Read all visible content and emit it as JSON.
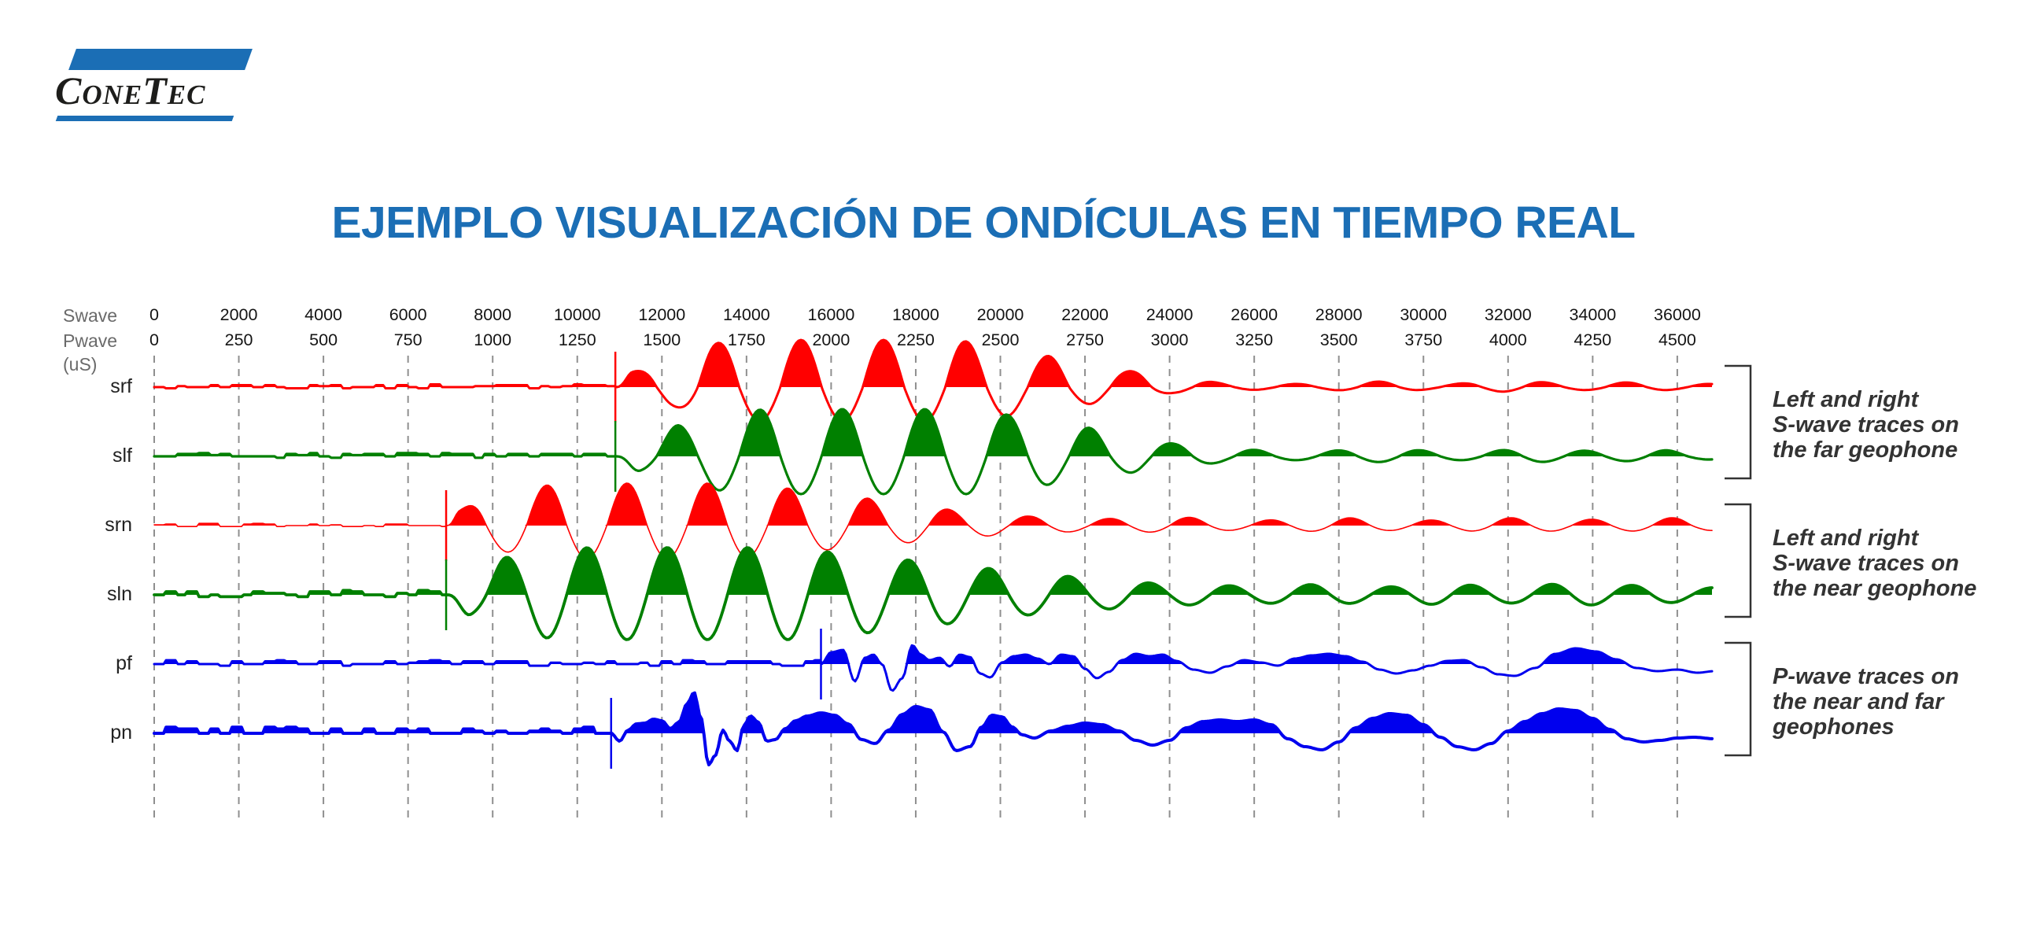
{
  "brand": {
    "name": "ConeTec",
    "bar_color": "#1b6eb5",
    "text_color": "#1d1d1b"
  },
  "title": {
    "text": "EJEMPLO VISUALIZACIÓN DE ONDÍCULAS EN TIEMPO REAL",
    "color": "#1b6eb5"
  },
  "chart_data": {
    "type": "line",
    "subtype": "seismic-wiggle-traces",
    "title": "EJEMPLO VISUALIZACIÓN DE ONDÍCULAS EN TIEMPO REAL",
    "grid": {
      "style": "dashed-vertical",
      "color": "#8f8f8f"
    },
    "unit_label": "(uS)",
    "x_axes": [
      {
        "id": "swave",
        "label": "Swave",
        "unit": "uS",
        "min": 0,
        "max": 36000,
        "tick_step": 2000,
        "ticks": [
          0,
          2000,
          4000,
          6000,
          8000,
          10000,
          12000,
          14000,
          16000,
          18000,
          20000,
          22000,
          24000,
          26000,
          28000,
          30000,
          32000,
          34000,
          36000
        ]
      },
      {
        "id": "pwave",
        "label": "Pwave",
        "unit": "uS",
        "min": 0,
        "max": 4500,
        "tick_step": 250,
        "ticks": [
          0,
          250,
          500,
          750,
          1000,
          1250,
          1500,
          1750,
          2000,
          2250,
          2500,
          2750,
          3000,
          3250,
          3500,
          3750,
          4000,
          4250,
          4500
        ]
      }
    ],
    "traces": [
      {
        "id": "srf",
        "label": "srf",
        "color": "#ff0000",
        "axis": "swave",
        "kind": "wavelet",
        "onset_us": 10900,
        "period_us": 1950,
        "first_motion": "up",
        "neg_scale": 0.72,
        "stroke_width": 3,
        "noise_amp": 2.5,
        "envelope": [
          [
            10900,
            0
          ],
          [
            11300,
            20
          ],
          [
            12200,
            34
          ],
          [
            13200,
            56
          ],
          [
            14200,
            60
          ],
          [
            18800,
            60
          ],
          [
            20000,
            52
          ],
          [
            21000,
            40
          ],
          [
            22000,
            30
          ],
          [
            23200,
            20
          ],
          [
            24200,
            10
          ],
          [
            25500,
            5
          ],
          [
            27000,
            4
          ],
          [
            29000,
            7
          ],
          [
            30500,
            4
          ],
          [
            32000,
            8
          ],
          [
            33500,
            5
          ],
          [
            35000,
            6
          ],
          [
            36600,
            4
          ]
        ]
      },
      {
        "id": "slf",
        "label": "slf",
        "color": "#008000",
        "axis": "swave",
        "kind": "wavelet",
        "onset_us": 10900,
        "period_us": 1950,
        "first_motion": "down",
        "neg_scale": 0.8,
        "stroke_width": 3.2,
        "noise_amp": 3,
        "envelope": [
          [
            10900,
            0
          ],
          [
            11500,
            24
          ],
          [
            12500,
            40
          ],
          [
            13600,
            56
          ],
          [
            14600,
            60
          ],
          [
            19400,
            60
          ],
          [
            20600,
            50
          ],
          [
            21800,
            38
          ],
          [
            23000,
            26
          ],
          [
            24200,
            16
          ],
          [
            25500,
            9
          ],
          [
            27000,
            6
          ],
          [
            29000,
            9
          ],
          [
            31000,
            6
          ],
          [
            32500,
            9
          ],
          [
            34000,
            7
          ],
          [
            35500,
            8
          ],
          [
            36600,
            5
          ]
        ]
      },
      {
        "id": "srn",
        "label": "srn",
        "color": "#ff0000",
        "axis": "swave",
        "kind": "wavelet",
        "onset_us": 6900,
        "period_us": 1900,
        "first_motion": "up",
        "neg_scale": 0.78,
        "stroke_width": 1.6,
        "noise_amp": 2,
        "envelope": [
          [
            6900,
            0
          ],
          [
            7200,
            22
          ],
          [
            8000,
            40
          ],
          [
            8900,
            50
          ],
          [
            9800,
            54
          ],
          [
            13500,
            54
          ],
          [
            14800,
            48
          ],
          [
            16300,
            38
          ],
          [
            17800,
            28
          ],
          [
            19300,
            18
          ],
          [
            20800,
            12
          ],
          [
            22300,
            9
          ],
          [
            24000,
            11
          ],
          [
            26000,
            7
          ],
          [
            28000,
            10
          ],
          [
            30000,
            7
          ],
          [
            32000,
            10
          ],
          [
            34000,
            8
          ],
          [
            36000,
            10
          ],
          [
            36600,
            8
          ]
        ]
      },
      {
        "id": "sln",
        "label": "sln",
        "color": "#008000",
        "axis": "swave",
        "kind": "wavelet",
        "onset_us": 6900,
        "period_us": 1900,
        "first_motion": "down",
        "neg_scale": 0.95,
        "stroke_width": 3.8,
        "noise_amp": 4,
        "envelope": [
          [
            6900,
            0
          ],
          [
            7500,
            28
          ],
          [
            8400,
            48
          ],
          [
            9400,
            58
          ],
          [
            10400,
            60
          ],
          [
            15000,
            60
          ],
          [
            16500,
            52
          ],
          [
            18000,
            44
          ],
          [
            19500,
            34
          ],
          [
            21000,
            26
          ],
          [
            22500,
            19
          ],
          [
            24000,
            14
          ],
          [
            26000,
            11
          ],
          [
            27500,
            13
          ],
          [
            29000,
            10
          ],
          [
            30500,
            13
          ],
          [
            32000,
            11
          ],
          [
            33500,
            14
          ],
          [
            35000,
            12
          ],
          [
            36600,
            9
          ]
        ]
      },
      {
        "id": "pf",
        "label": "pf",
        "color": "#0000ee",
        "axis": "pwave",
        "kind": "shape",
        "onset_us": 1970,
        "stroke_width": 3,
        "noise_amp": 3.5,
        "shape": [
          [
            1970,
            0
          ],
          [
            2000,
            15
          ],
          [
            2035,
            18
          ],
          [
            2070,
            -22
          ],
          [
            2100,
            8
          ],
          [
            2125,
            12
          ],
          [
            2150,
            0
          ],
          [
            2180,
            -34
          ],
          [
            2210,
            -18
          ],
          [
            2240,
            24
          ],
          [
            2265,
            12
          ],
          [
            2290,
            5
          ],
          [
            2320,
            8
          ],
          [
            2350,
            -3
          ],
          [
            2380,
            12
          ],
          [
            2410,
            9
          ],
          [
            2440,
            -12
          ],
          [
            2470,
            -17
          ],
          [
            2505,
            2
          ],
          [
            2540,
            10
          ],
          [
            2575,
            12
          ],
          [
            2610,
            7
          ],
          [
            2645,
            0
          ],
          [
            2680,
            12
          ],
          [
            2715,
            10
          ],
          [
            2750,
            -6
          ],
          [
            2785,
            -18
          ],
          [
            2820,
            -10
          ],
          [
            2860,
            5
          ],
          [
            2900,
            13
          ],
          [
            2940,
            10
          ],
          [
            2980,
            12
          ],
          [
            3020,
            4
          ],
          [
            3070,
            -7
          ],
          [
            3120,
            -11
          ],
          [
            3170,
            -3
          ],
          [
            3220,
            5
          ],
          [
            3270,
            2
          ],
          [
            3320,
            -2
          ],
          [
            3370,
            7
          ],
          [
            3420,
            11
          ],
          [
            3470,
            13
          ],
          [
            3520,
            10
          ],
          [
            3570,
            3
          ],
          [
            3620,
            -7
          ],
          [
            3670,
            -12
          ],
          [
            3720,
            -8
          ],
          [
            3770,
            -2
          ],
          [
            3820,
            4
          ],
          [
            3870,
            5
          ],
          [
            3920,
            -4
          ],
          [
            3970,
            -13
          ],
          [
            4020,
            -15
          ],
          [
            4080,
            -5
          ],
          [
            4140,
            13
          ],
          [
            4200,
            20
          ],
          [
            4260,
            16
          ],
          [
            4320,
            6
          ],
          [
            4380,
            -5
          ],
          [
            4440,
            -9
          ],
          [
            4500,
            -7
          ],
          [
            4560,
            -11
          ],
          [
            4610,
            -9
          ]
        ]
      },
      {
        "id": "pn",
        "label": "pn",
        "color": "#0000ee",
        "axis": "pwave",
        "kind": "shape",
        "onset_us": 1350,
        "stroke_width": 4,
        "noise_amp": 5.5,
        "shape": [
          [
            1350,
            0
          ],
          [
            1375,
            -10
          ],
          [
            1400,
            4
          ],
          [
            1425,
            12
          ],
          [
            1450,
            13
          ],
          [
            1475,
            18
          ],
          [
            1500,
            16
          ],
          [
            1525,
            6
          ],
          [
            1550,
            14
          ],
          [
            1575,
            38
          ],
          [
            1595,
            52
          ],
          [
            1615,
            20
          ],
          [
            1638,
            -40
          ],
          [
            1658,
            -28
          ],
          [
            1680,
            4
          ],
          [
            1700,
            -10
          ],
          [
            1722,
            -22
          ],
          [
            1742,
            10
          ],
          [
            1762,
            22
          ],
          [
            1785,
            14
          ],
          [
            1810,
            -10
          ],
          [
            1835,
            -8
          ],
          [
            1865,
            6
          ],
          [
            1895,
            16
          ],
          [
            1930,
            22
          ],
          [
            1970,
            26
          ],
          [
            2010,
            23
          ],
          [
            2050,
            12
          ],
          [
            2090,
            -8
          ],
          [
            2130,
            -13
          ],
          [
            2170,
            4
          ],
          [
            2210,
            24
          ],
          [
            2250,
            34
          ],
          [
            2290,
            30
          ],
          [
            2330,
            2
          ],
          [
            2370,
            -22
          ],
          [
            2410,
            -17
          ],
          [
            2445,
            8
          ],
          [
            2475,
            23
          ],
          [
            2505,
            21
          ],
          [
            2535,
            8
          ],
          [
            2565,
            -2
          ],
          [
            2600,
            -6
          ],
          [
            2650,
            3
          ],
          [
            2700,
            9
          ],
          [
            2750,
            13
          ],
          [
            2800,
            11
          ],
          [
            2850,
            3
          ],
          [
            2900,
            -9
          ],
          [
            2950,
            -15
          ],
          [
            3000,
            -9
          ],
          [
            3050,
            7
          ],
          [
            3100,
            15
          ],
          [
            3150,
            17
          ],
          [
            3200,
            15
          ],
          [
            3250,
            17
          ],
          [
            3300,
            11
          ],
          [
            3350,
            -7
          ],
          [
            3400,
            -17
          ],
          [
            3450,
            -21
          ],
          [
            3500,
            -11
          ],
          [
            3550,
            7
          ],
          [
            3600,
            19
          ],
          [
            3650,
            25
          ],
          [
            3700,
            23
          ],
          [
            3750,
            11
          ],
          [
            3800,
            -5
          ],
          [
            3850,
            -17
          ],
          [
            3900,
            -21
          ],
          [
            3950,
            -13
          ],
          [
            4000,
            3
          ],
          [
            4050,
            15
          ],
          [
            4100,
            25
          ],
          [
            4150,
            31
          ],
          [
            4200,
            29
          ],
          [
            4250,
            19
          ],
          [
            4300,
            5
          ],
          [
            4350,
            -7
          ],
          [
            4400,
            -11
          ],
          [
            4450,
            -9
          ],
          [
            4500,
            -6
          ],
          [
            4550,
            -5
          ],
          [
            4610,
            -7
          ]
        ]
      }
    ],
    "annotations": [
      {
        "id": "far-geophone",
        "text": "Left and right\nS-wave traces on\nthe far geophone",
        "trace_span": [
          "srf",
          "slf"
        ]
      },
      {
        "id": "near-geophone",
        "text": "Left and right\nS-wave traces on\nthe near geophone",
        "trace_span": [
          "srn",
          "sln"
        ]
      },
      {
        "id": "p-geophones",
        "text": "P-wave traces on\nthe near and far\ngeophones",
        "trace_span": [
          "pf",
          "pn"
        ]
      }
    ]
  }
}
